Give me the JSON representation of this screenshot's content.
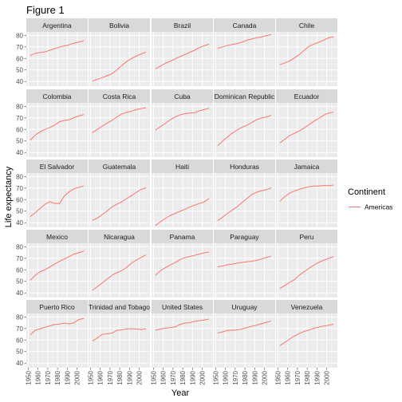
{
  "figure": {
    "title": "Figure 1"
  },
  "chart_data": {
    "type": "line",
    "title": "Figure 1",
    "xlabel": "Year",
    "ylabel": "Life expectancy",
    "xlim": [
      1948,
      2011
    ],
    "ylim": [
      36,
      83
    ],
    "x_ticks": [
      1950,
      1960,
      1970,
      1980,
      1990,
      2000
    ],
    "x_tick_labels": [
      "1950",
      "1960",
      "1970",
      "1980",
      "1990",
      "2000"
    ],
    "y_ticks": [
      40,
      50,
      60,
      70,
      80
    ],
    "y_tick_labels": [
      "40",
      "50",
      "60",
      "70",
      "80"
    ],
    "grid": true,
    "facet": {
      "rows": 5,
      "cols": 5
    },
    "legend": {
      "title": "Continent",
      "position": "right",
      "items": [
        {
          "label": "Americas",
          "color": "#F8766D"
        }
      ]
    },
    "line_color": "#F8766D",
    "x": [
      1952,
      1957,
      1962,
      1967,
      1972,
      1977,
      1982,
      1987,
      1992,
      1997,
      2002,
      2007
    ],
    "panels": [
      {
        "name": "Argentina",
        "values": [
          62.5,
          64.4,
          65.1,
          65.6,
          67.1,
          68.5,
          69.9,
          70.8,
          71.9,
          73.3,
          74.3,
          75.3
        ]
      },
      {
        "name": "Bolivia",
        "values": [
          40.4,
          41.9,
          43.4,
          45.0,
          46.7,
          50.0,
          53.9,
          57.3,
          59.9,
          62.1,
          63.9,
          65.6
        ]
      },
      {
        "name": "Brazil",
        "values": [
          50.9,
          53.3,
          55.7,
          57.6,
          59.5,
          61.5,
          63.3,
          65.2,
          67.1,
          69.4,
          71.0,
          72.4
        ]
      },
      {
        "name": "Canada",
        "values": [
          68.8,
          70.0,
          71.3,
          72.1,
          72.9,
          74.2,
          75.8,
          76.9,
          77.9,
          78.6,
          79.8,
          80.7
        ]
      },
      {
        "name": "Chile",
        "values": [
          54.7,
          56.1,
          57.9,
          60.5,
          63.4,
          67.1,
          70.6,
          72.5,
          74.1,
          75.8,
          77.9,
          78.6
        ]
      },
      {
        "name": "Colombia",
        "values": [
          50.6,
          55.1,
          57.9,
          60.0,
          61.6,
          63.8,
          66.7,
          67.8,
          68.4,
          70.3,
          71.7,
          72.9
        ]
      },
      {
        "name": "Costa Rica",
        "values": [
          57.2,
          60.0,
          62.8,
          65.4,
          67.8,
          70.8,
          73.4,
          74.8,
          75.7,
          77.3,
          78.1,
          78.8
        ]
      },
      {
        "name": "Cuba",
        "values": [
          59.4,
          62.3,
          65.2,
          68.3,
          70.7,
          72.6,
          73.7,
          74.2,
          74.4,
          76.2,
          77.2,
          78.3
        ]
      },
      {
        "name": "Dominican Republic",
        "values": [
          45.9,
          49.8,
          53.5,
          56.8,
          59.6,
          61.8,
          63.7,
          66.0,
          68.5,
          69.9,
          70.8,
          72.2
        ]
      },
      {
        "name": "Ecuador",
        "values": [
          48.4,
          51.4,
          54.6,
          56.7,
          58.8,
          61.3,
          64.3,
          67.2,
          69.6,
          72.3,
          74.2,
          75.0
        ]
      },
      {
        "name": "El Salvador",
        "values": [
          45.3,
          48.6,
          52.3,
          55.9,
          58.2,
          56.7,
          56.6,
          63.2,
          66.8,
          69.5,
          70.7,
          71.9
        ]
      },
      {
        "name": "Guatemala",
        "values": [
          42.0,
          44.1,
          47.0,
          50.0,
          53.7,
          56.0,
          58.1,
          60.8,
          63.4,
          66.3,
          68.9,
          70.3
        ]
      },
      {
        "name": "Haiti",
        "values": [
          37.6,
          40.7,
          43.6,
          46.2,
          48.0,
          49.9,
          51.5,
          53.6,
          55.1,
          56.7,
          58.1,
          60.9
        ]
      },
      {
        "name": "Honduras",
        "values": [
          41.9,
          44.7,
          48.0,
          50.9,
          53.9,
          57.4,
          60.9,
          64.5,
          66.4,
          67.7,
          68.6,
          70.2
        ]
      },
      {
        "name": "Jamaica",
        "values": [
          58.5,
          62.6,
          65.6,
          67.5,
          69.0,
          70.1,
          71.2,
          71.8,
          71.8,
          72.3,
          72.0,
          72.6
        ]
      },
      {
        "name": "Mexico",
        "values": [
          50.8,
          55.2,
          58.3,
          60.1,
          62.4,
          65.0,
          67.4,
          69.5,
          71.5,
          73.7,
          74.9,
          76.2
        ]
      },
      {
        "name": "Nicaragua",
        "values": [
          42.3,
          45.4,
          48.6,
          51.9,
          55.2,
          57.5,
          59.3,
          62.0,
          65.8,
          68.4,
          70.8,
          72.9
        ]
      },
      {
        "name": "Panama",
        "values": [
          55.2,
          59.2,
          61.8,
          64.1,
          66.2,
          68.7,
          70.5,
          71.5,
          72.5,
          73.7,
          74.7,
          75.5
        ]
      },
      {
        "name": "Paraguay",
        "values": [
          62.6,
          63.2,
          64.4,
          64.9,
          65.8,
          66.4,
          67.0,
          67.4,
          68.2,
          69.4,
          70.8,
          71.8
        ]
      },
      {
        "name": "Peru",
        "values": [
          43.9,
          46.3,
          49.1,
          51.4,
          55.4,
          58.4,
          61.4,
          64.1,
          66.5,
          68.4,
          69.9,
          71.4
        ]
      },
      {
        "name": "Puerto Rico",
        "values": [
          64.3,
          68.5,
          69.6,
          71.1,
          72.2,
          73.4,
          73.8,
          74.6,
          73.9,
          74.9,
          77.8,
          78.7
        ]
      },
      {
        "name": "Trinidad and Tobago",
        "values": [
          59.1,
          61.8,
          64.9,
          65.4,
          65.9,
          68.3,
          68.8,
          69.6,
          69.9,
          69.5,
          68.98,
          69.8
        ]
      },
      {
        "name": "United States",
        "values": [
          68.4,
          69.5,
          70.2,
          70.8,
          71.3,
          73.4,
          74.7,
          75.0,
          76.1,
          76.8,
          77.3,
          78.2
        ]
      },
      {
        "name": "Uruguay",
        "values": [
          66.1,
          67.0,
          68.3,
          68.5,
          68.7,
          69.5,
          70.8,
          71.9,
          72.8,
          74.2,
          75.3,
          76.4
        ]
      },
      {
        "name": "Venezuela",
        "values": [
          55.1,
          57.9,
          60.8,
          63.5,
          65.7,
          67.5,
          68.6,
          70.2,
          71.2,
          72.1,
          72.8,
          73.7
        ]
      }
    ]
  }
}
